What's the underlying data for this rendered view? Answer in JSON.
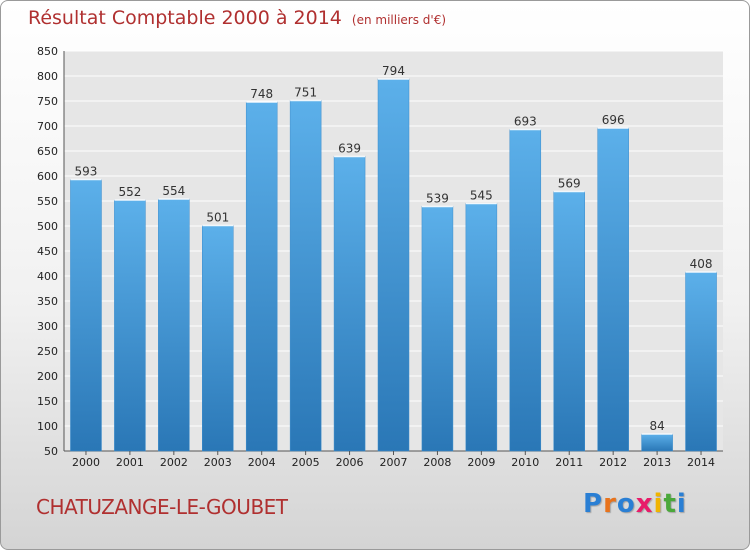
{
  "chart_data": {
    "type": "bar",
    "title": "Résultat Comptable 2000 à 2014",
    "subtitle": "(en milliers d'€)",
    "categories": [
      "2000",
      "2001",
      "2002",
      "2003",
      "2004",
      "2005",
      "2006",
      "2007",
      "2008",
      "2009",
      "2010",
      "2011",
      "2012",
      "2013",
      "2014"
    ],
    "values": [
      593,
      552,
      554,
      501,
      748,
      751,
      639,
      794,
      539,
      545,
      693,
      569,
      696,
      84,
      408
    ],
    "ylim": [
      50,
      850
    ],
    "yticks": [
      50,
      100,
      150,
      200,
      250,
      300,
      350,
      400,
      450,
      500,
      550,
      600,
      650,
      700,
      750,
      800,
      850
    ],
    "xlabel": "",
    "ylabel": "",
    "grid": true
  },
  "commune": "CHATUZANGE-LE-GOUBET",
  "logo": {
    "text": "Proxiti",
    "colors": [
      "#2a7fd4",
      "#e8731c",
      "#2a7fd4",
      "#e81c6a",
      "#f0b400",
      "#4aa83a",
      "#2a7fd4"
    ]
  },
  "colors": {
    "bar_light": "#5aaee8",
    "bar_dark": "#2a78b8",
    "title": "#b03030"
  }
}
